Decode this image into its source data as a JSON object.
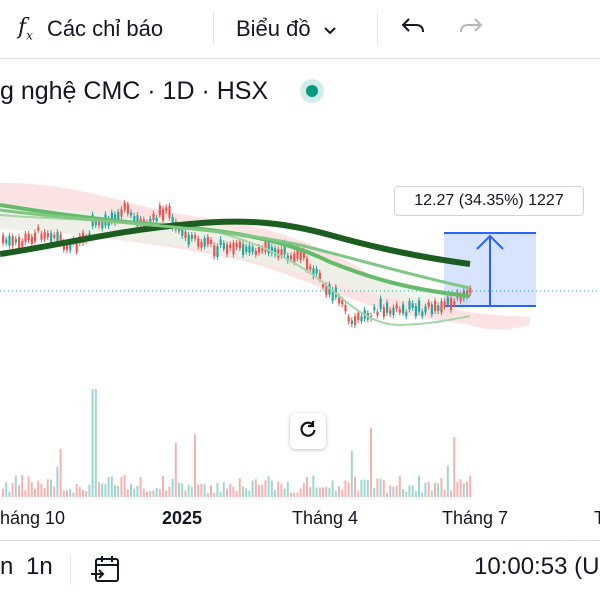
{
  "toolbar": {
    "indicators_icon": "fx",
    "indicators_label": "Các chỉ báo",
    "chart_type_label": "Biểu đồ",
    "undo_icon": "undo-arrow",
    "redo_icon": "redo-arrow"
  },
  "legend": {
    "symbol_title": "g nghệ CMC · 1D · HSX",
    "status_color": "#089981"
  },
  "measure": {
    "label": "12.27 (34.35%) 1227",
    "color": "#2962ff"
  },
  "reset_icon": "reset-icon",
  "time_axis": {
    "ticks": [
      "háng 10",
      "2025",
      "Tháng 4",
      "Tháng 7",
      "T"
    ]
  },
  "bottom_bar": {
    "left_partial": "n",
    "range": "1n",
    "goto_date_icon": "calendar-goto-icon",
    "clock": "10:00:53 (U"
  },
  "colors": {
    "up": "#26a69a",
    "down": "#ef5350",
    "ma_long": "#1b5e20",
    "ma_mid": "#66bb6a",
    "ma_short": "#a5d6a7",
    "cloud": "#f8d7d7"
  }
}
